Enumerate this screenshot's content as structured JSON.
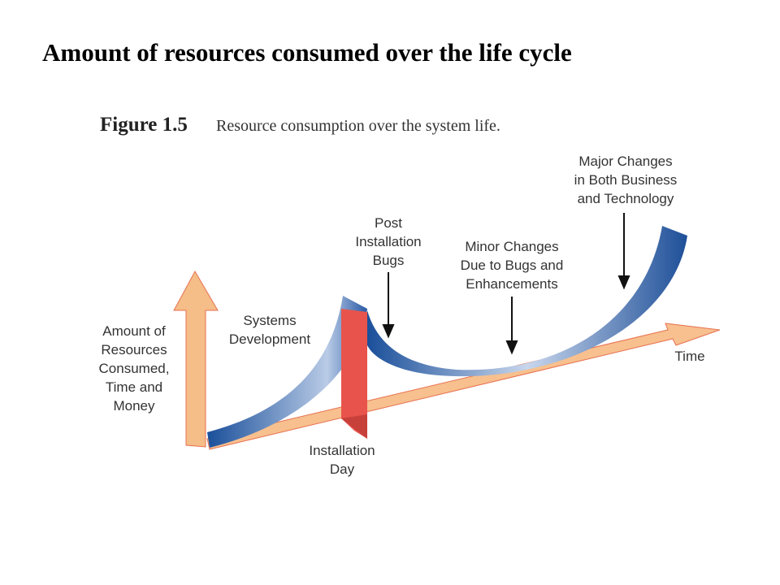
{
  "title": "Amount of resources consumed over the life cycle",
  "figure": {
    "number": "Figure 1.5",
    "caption": "Resource consumption over the system life."
  },
  "labels": {
    "major_changes": [
      "Major Changes",
      "in Both Business",
      "and Technology"
    ],
    "post_installation_bugs": [
      "Post",
      "Installation",
      "Bugs"
    ],
    "minor_changes": [
      "Minor Changes",
      "Due to Bugs and",
      "Enhancements"
    ],
    "systems_development": [
      "Systems",
      "Development"
    ],
    "y_axis": [
      "Amount of",
      "Resources",
      "Consumed,",
      "Time and",
      "Money"
    ],
    "time": [
      "Time"
    ],
    "installation_day": [
      "Installation",
      "Day"
    ]
  }
}
